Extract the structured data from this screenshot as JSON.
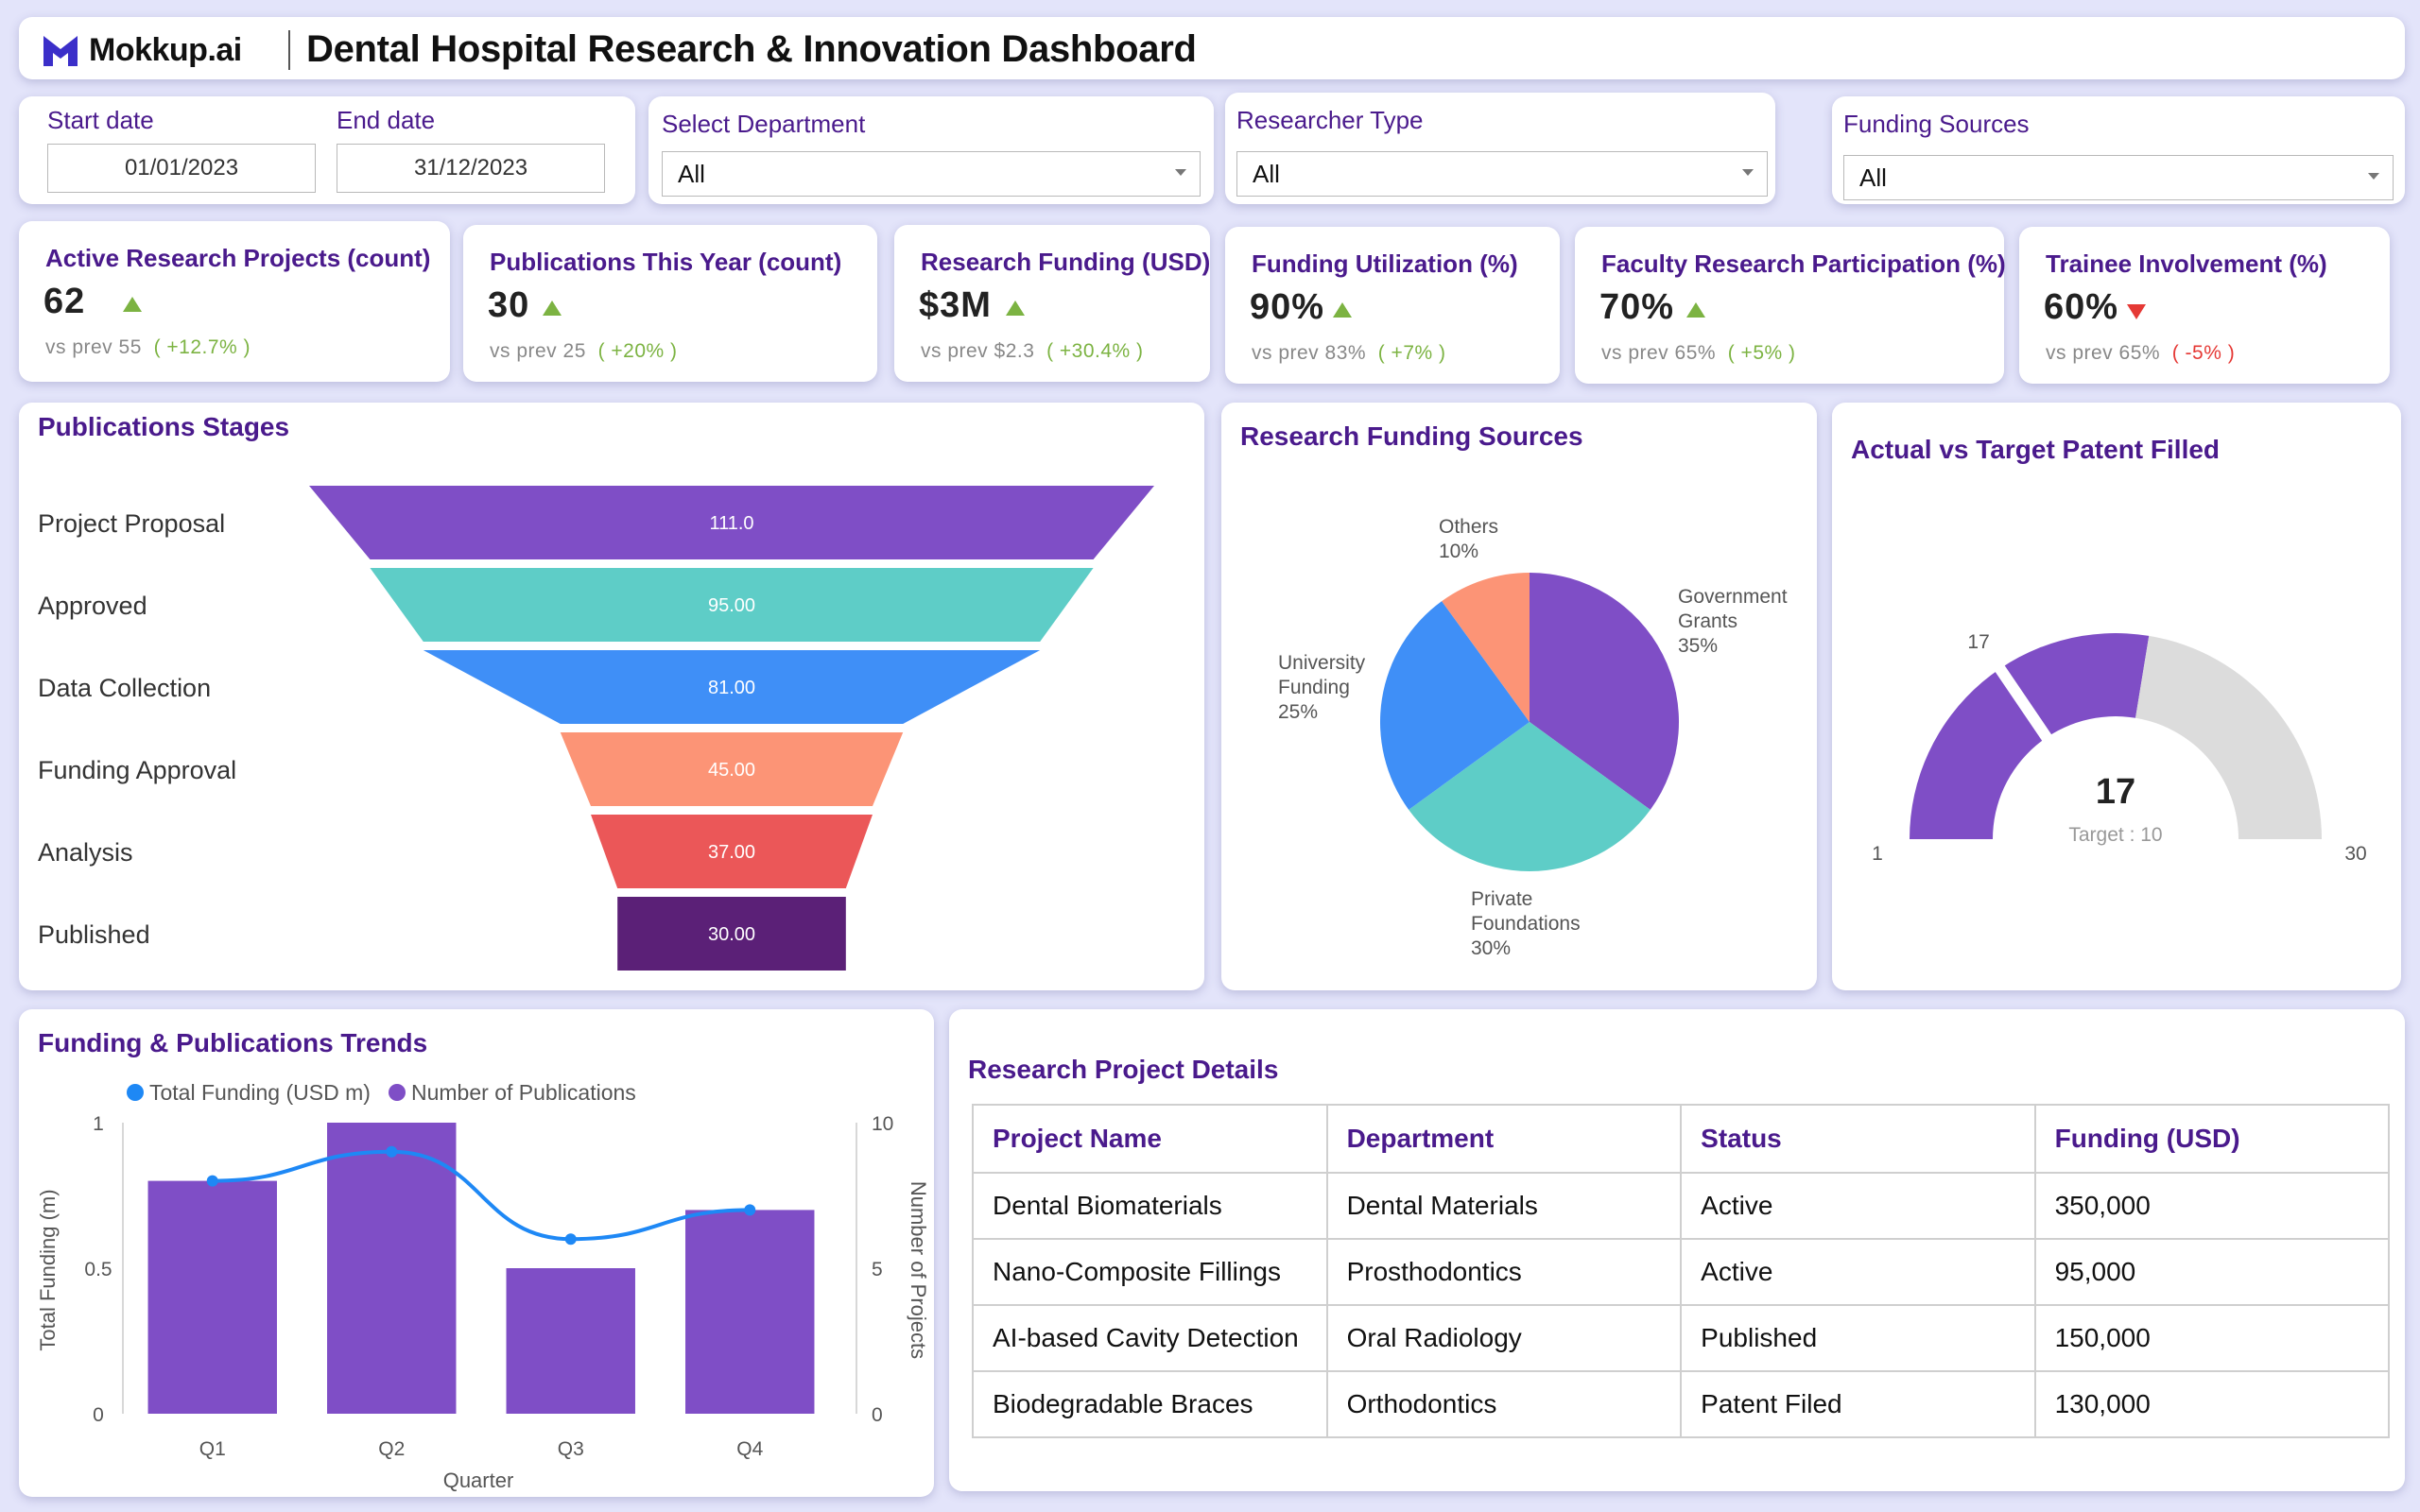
{
  "header": {
    "logo_text": "Mokkup.ai",
    "title": "Dental Hospital Research & Innovation Dashboard"
  },
  "filters": {
    "start_date_label": "Start date",
    "start_date_value": "01/01/2023",
    "end_date_label": "End date",
    "end_date_value": "31/12/2023",
    "department_label": "Select Department",
    "department_value": "All",
    "researcher_label": "Researcher Type",
    "researcher_value": "All",
    "funding_label": "Funding Sources",
    "funding_value": "All"
  },
  "kpis": [
    {
      "title": "Active Research Projects (count)",
      "value": "62",
      "trend": "up",
      "prev_label": "vs prev",
      "prev_value": "55",
      "delta": "( +12.7% )"
    },
    {
      "title": "Publications This Year (count)",
      "value": "30",
      "trend": "up",
      "prev_label": "vs prev",
      "prev_value": "25",
      "delta": "( +20% )"
    },
    {
      "title": "Research Funding (USD)",
      "value": "$3M",
      "trend": "up",
      "prev_label": "vs prev",
      "prev_value": "$2.3",
      "delta": "( +30.4% )"
    },
    {
      "title": "Funding Utilization (%)",
      "value": "90%",
      "trend": "up",
      "prev_label": "vs prev",
      "prev_value": "83%",
      "delta": "( +7% )"
    },
    {
      "title": "Faculty Research Participation (%)",
      "value": "70%",
      "trend": "up",
      "prev_label": "vs prev",
      "prev_value": "65%",
      "delta": "( +5% )"
    },
    {
      "title": "Trainee Involvement (%)",
      "value": "60%",
      "trend": "down",
      "prev_label": "vs prev",
      "prev_value": "65%",
      "delta": "( -5% )"
    }
  ],
  "colors": {
    "purple": "#7f4ec6",
    "teal": "#5ecdc7",
    "blue": "#3f8ff7",
    "salmon": "#fc9476",
    "red": "#eb5758",
    "dark_purple": "#5b2077",
    "title_purple": "#4a1a8c",
    "trend_blue": "#1e88f5",
    "gauge_grey": "#dcdcdc",
    "up_green": "#7cb342",
    "down_red": "#e53935"
  },
  "panels": {
    "funnel_title": "Publications Stages",
    "pie_title": "Research Funding Sources",
    "gauge_title": "Actual vs Target Patent Filled",
    "trend_title": "Funding & Publications Trends",
    "table_title": "Research Project Details"
  },
  "chart_data": [
    {
      "type": "funnel",
      "title": "Publications Stages",
      "categories": [
        "Project Proposal",
        "Approved",
        "Data Collection",
        "Funding Approval",
        "Analysis",
        "Published"
      ],
      "values": [
        111,
        95,
        81,
        45,
        37,
        30
      ],
      "value_labels": [
        "111.0",
        "95.00",
        "81.00",
        "45.00",
        "37.00",
        "30.00"
      ]
    },
    {
      "type": "pie",
      "title": "Research Funding Sources",
      "slices": [
        {
          "label": [
            "Government",
            "Grants"
          ],
          "percent_label": "35%",
          "value": 35
        },
        {
          "label": [
            "Private",
            "Foundations"
          ],
          "percent_label": "30%",
          "value": 30
        },
        {
          "label": [
            "University",
            "Funding"
          ],
          "percent_label": "25%",
          "value": 25
        },
        {
          "label": [
            "Others"
          ],
          "percent_label": "10%",
          "value": 10
        }
      ]
    },
    {
      "type": "gauge",
      "title": "Actual vs Target Patent Filled",
      "min": 1,
      "max": 30,
      "target": 10,
      "actual": 17,
      "min_label": "1",
      "max_label": "30",
      "marker_label": "17",
      "value_label": "17",
      "target_label": "Target : 10"
    },
    {
      "type": "bar",
      "title": "Funding & Publications Trends",
      "categories": [
        "Q1",
        "Q2",
        "Q3",
        "Q4"
      ],
      "xlabel": "Quarter",
      "ylabel": "Total Funding (m)",
      "y2label": "Number of Projects",
      "ylim": [
        0,
        1
      ],
      "y2lim": [
        0,
        10
      ],
      "y_ticks": [
        "0",
        "0.5",
        "1"
      ],
      "y2_ticks": [
        "0",
        "5",
        "10"
      ],
      "legend_position": "top",
      "series": [
        {
          "name": "Total Funding (USD m)",
          "type": "line",
          "axis": "left",
          "values": [
            0.8,
            0.9,
            0.6,
            0.7
          ]
        },
        {
          "name": "Number of Publications",
          "type": "bar",
          "axis": "right",
          "values": [
            8,
            10,
            5,
            7
          ]
        }
      ]
    }
  ],
  "table": {
    "headers": [
      "Project Name",
      "Department",
      "Status",
      "Funding (USD)"
    ],
    "rows": [
      [
        "Dental Biomaterials",
        "Dental Materials",
        "Active",
        "350,000"
      ],
      [
        "Nano-Composite Fillings",
        "Prosthodontics",
        "Active",
        "95,000"
      ],
      [
        "AI-based Cavity Detection",
        "Oral Radiology",
        "Published",
        "150,000"
      ],
      [
        "Biodegradable Braces",
        "Orthodontics",
        "Patent Filed",
        "130,000"
      ]
    ]
  }
}
